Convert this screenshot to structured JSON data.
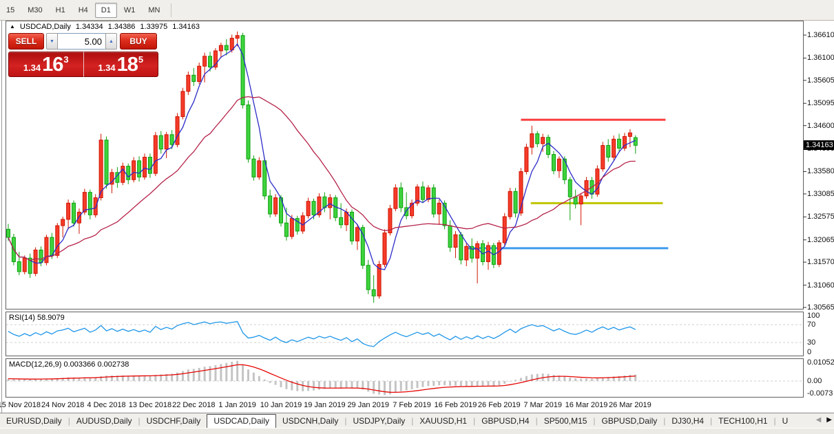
{
  "toolbar": {
    "timeframes": [
      {
        "label": "15",
        "active": false
      },
      {
        "label": "M30",
        "active": false
      },
      {
        "label": "H1",
        "active": false
      },
      {
        "label": "H4",
        "active": false
      },
      {
        "label": "D1",
        "active": true
      },
      {
        "label": "W1",
        "active": false
      },
      {
        "label": "MN",
        "active": false
      }
    ]
  },
  "chart": {
    "title": {
      "symbol": "USDCAD,Daily",
      "open": "1.34334",
      "high": "1.34386",
      "low": "1.33975",
      "close": "1.34163"
    },
    "trade_panel": {
      "sell_label": "SELL",
      "buy_label": "BUY",
      "volume": "5.00",
      "sell_price": {
        "prefix": "1.34",
        "big": "16",
        "sup": "3"
      },
      "buy_price": {
        "prefix": "1.34",
        "big": "18",
        "sup": "5"
      }
    },
    "price_axis": {
      "labels": [
        "1.36610",
        "1.36100",
        "1.35605",
        "1.35095",
        "1.34600",
        "1.34090",
        "1.33580",
        "1.33085",
        "1.32575",
        "1.32065",
        "1.31570",
        "1.31060",
        "1.30565"
      ],
      "current": "1.34163",
      "max": 1.3661,
      "min": 1.30565
    },
    "date_axis": [
      "15 Nov 2018",
      "24 Nov 2018",
      "4 Dec 2018",
      "13 Dec 2018",
      "22 Dec 2018",
      "1 Jan 2019",
      "10 Jan 2019",
      "19 Jan 2019",
      "29 Jan 2019",
      "7 Feb 2019",
      "16 Feb 2019",
      "26 Feb 2019",
      "7 Mar 2019",
      "16 Mar 2019",
      "26 Mar 2019"
    ]
  },
  "rsi": {
    "label": "RSI(14)",
    "value": "58.9079",
    "axis": [
      {
        "text": "100",
        "v": 100
      },
      {
        "text": "70",
        "v": 70
      },
      {
        "text": "30",
        "v": 30
      },
      {
        "text": "0",
        "v": 0
      }
    ],
    "levels": [
      70,
      30
    ],
    "color": "#1e96e8"
  },
  "macd": {
    "label": "MACD(12,26,9)",
    "main_value": "0.003366",
    "signal_value": "0.002738",
    "axis": [
      {
        "text": "0.010525",
        "v": 0.010525
      },
      {
        "text": "0.00",
        "v": 0
      },
      {
        "text": "-0.0073",
        "v": -0.0073
      }
    ],
    "hist_color": "#c4c4c4",
    "signal_color": "#e60400"
  },
  "tabs": {
    "items": [
      {
        "label": "EURUSD,Daily",
        "active": false
      },
      {
        "label": "AUDUSD,Daily",
        "active": false
      },
      {
        "label": "USDCHF,Daily",
        "active": false
      },
      {
        "label": "USDCAD,Daily",
        "active": true
      },
      {
        "label": "USDCNH,Daily",
        "active": false
      },
      {
        "label": "USDJPY,Daily",
        "active": false
      },
      {
        "label": "XAUUSD,H1",
        "active": false
      },
      {
        "label": "GBPUSD,H4",
        "active": false
      },
      {
        "label": "SP500,M15",
        "active": false
      },
      {
        "label": "GBPUSD,Daily",
        "active": false
      },
      {
        "label": "DJ30,H4",
        "active": false
      },
      {
        "label": "TECH100,H1",
        "active": false
      },
      {
        "label": "U",
        "active": false
      }
    ]
  },
  "chart_data": {
    "type": "candlestick",
    "symbol": "USDCAD",
    "timeframe": "Daily",
    "ylim": [
      1.30565,
      1.3661
    ],
    "colors": {
      "bull_fill": "#f53b2a",
      "bull_stroke": "#cf1500",
      "bear_fill": "#3ed33e",
      "bear_stroke": "#0da00d",
      "ma_fast": "#2b2bc8",
      "ma_slow": "#b5234a"
    },
    "ma_fast_period": 5,
    "ma_slow_period": 20,
    "candles": [
      [
        1.323,
        1.3242,
        1.3204,
        1.3212
      ],
      [
        1.3212,
        1.322,
        1.315,
        1.3158
      ],
      [
        1.3158,
        1.318,
        1.3128,
        1.3136
      ],
      [
        1.3136,
        1.3172,
        1.313,
        1.3166
      ],
      [
        1.3166,
        1.3176,
        1.3122,
        1.3132
      ],
      [
        1.3132,
        1.319,
        1.3126,
        1.3184
      ],
      [
        1.3184,
        1.3192,
        1.3148,
        1.3156
      ],
      [
        1.3156,
        1.3218,
        1.315,
        1.3212
      ],
      [
        1.3212,
        1.3222,
        1.3164,
        1.3172
      ],
      [
        1.3172,
        1.3244,
        1.3166,
        1.3238
      ],
      [
        1.3238,
        1.3258,
        1.3212,
        1.3252
      ],
      [
        1.3252,
        1.3296,
        1.323,
        1.3288
      ],
      [
        1.3288,
        1.3294,
        1.3236,
        1.3244
      ],
      [
        1.3244,
        1.3276,
        1.322,
        1.3268
      ],
      [
        1.3268,
        1.332,
        1.3262,
        1.3312
      ],
      [
        1.3312,
        1.3318,
        1.3252,
        1.3262
      ],
      [
        1.3262,
        1.3308,
        1.3256,
        1.33
      ],
      [
        1.33,
        1.3442,
        1.3294,
        1.3428
      ],
      [
        1.3428,
        1.3436,
        1.332,
        1.333
      ],
      [
        1.333,
        1.3364,
        1.331,
        1.3356
      ],
      [
        1.3356,
        1.3368,
        1.3322,
        1.3334
      ],
      [
        1.3334,
        1.3378,
        1.3328,
        1.337
      ],
      [
        1.337,
        1.3376,
        1.333,
        1.334
      ],
      [
        1.334,
        1.339,
        1.3334,
        1.3382
      ],
      [
        1.3382,
        1.3392,
        1.3336,
        1.3346
      ],
      [
        1.3346,
        1.3398,
        1.334,
        1.339
      ],
      [
        1.339,
        1.3398,
        1.3344,
        1.3354
      ],
      [
        1.3354,
        1.3446,
        1.3348,
        1.3438
      ],
      [
        1.3438,
        1.3448,
        1.3398,
        1.3408
      ],
      [
        1.3408,
        1.3446,
        1.3388,
        1.344
      ],
      [
        1.344,
        1.345,
        1.3408,
        1.3418
      ],
      [
        1.3418,
        1.3488,
        1.3412,
        1.348
      ],
      [
        1.348,
        1.3544,
        1.3474,
        1.3536
      ],
      [
        1.3536,
        1.358,
        1.3528,
        1.3572
      ],
      [
        1.3572,
        1.3588,
        1.3548,
        1.3558
      ],
      [
        1.3558,
        1.36,
        1.3552,
        1.3592
      ],
      [
        1.3592,
        1.3622,
        1.3556,
        1.3614
      ],
      [
        1.3614,
        1.3624,
        1.358,
        1.359
      ],
      [
        1.359,
        1.3632,
        1.3584,
        1.3626
      ],
      [
        1.3626,
        1.3644,
        1.361,
        1.3638
      ],
      [
        1.3638,
        1.3652,
        1.3616,
        1.3628
      ],
      [
        1.3628,
        1.3662,
        1.3622,
        1.3654
      ],
      [
        1.3654,
        1.3669,
        1.3636,
        1.366
      ],
      [
        1.366,
        1.3666,
        1.3498,
        1.3506
      ],
      [
        1.3506,
        1.3516,
        1.3378,
        1.3386
      ],
      [
        1.3386,
        1.3394,
        1.3338,
        1.3346
      ],
      [
        1.3346,
        1.339,
        1.334,
        1.3382
      ],
      [
        1.3382,
        1.3388,
        1.3296,
        1.3304
      ],
      [
        1.3304,
        1.3318,
        1.3256,
        1.3264
      ],
      [
        1.3264,
        1.3308,
        1.3258,
        1.33
      ],
      [
        1.33,
        1.3306,
        1.3236,
        1.3244
      ],
      [
        1.3244,
        1.3278,
        1.3205,
        1.3214
      ],
      [
        1.3214,
        1.3262,
        1.3208,
        1.3254
      ],
      [
        1.3254,
        1.326,
        1.3218,
        1.3226
      ],
      [
        1.3226,
        1.3268,
        1.322,
        1.326
      ],
      [
        1.326,
        1.33,
        1.3254,
        1.3292
      ],
      [
        1.3292,
        1.3298,
        1.3252,
        1.3262
      ],
      [
        1.3262,
        1.331,
        1.3256,
        1.3302
      ],
      [
        1.3302,
        1.3312,
        1.3268,
        1.3278
      ],
      [
        1.3278,
        1.3308,
        1.3252,
        1.33
      ],
      [
        1.33,
        1.3306,
        1.3248,
        1.3256
      ],
      [
        1.3256,
        1.3288,
        1.3232,
        1.324
      ],
      [
        1.324,
        1.3276,
        1.3226,
        1.3268
      ],
      [
        1.3268,
        1.3274,
        1.3196,
        1.3204
      ],
      [
        1.3204,
        1.3242,
        1.3184,
        1.3234
      ],
      [
        1.3234,
        1.324,
        1.3142,
        1.315
      ],
      [
        1.315,
        1.3162,
        1.3086,
        1.3096
      ],
      [
        1.3096,
        1.3128,
        1.3067,
        1.3082
      ],
      [
        1.3082,
        1.316,
        1.3076,
        1.3152
      ],
      [
        1.3152,
        1.323,
        1.3146,
        1.3222
      ],
      [
        1.3222,
        1.3284,
        1.3216,
        1.3276
      ],
      [
        1.3276,
        1.333,
        1.327,
        1.3322
      ],
      [
        1.3322,
        1.3334,
        1.3268,
        1.3278
      ],
      [
        1.3278,
        1.3312,
        1.3252,
        1.326
      ],
      [
        1.326,
        1.3296,
        1.3254,
        1.3288
      ],
      [
        1.3288,
        1.333,
        1.3282,
        1.3324
      ],
      [
        1.3324,
        1.3336,
        1.3288,
        1.3296
      ],
      [
        1.3296,
        1.3328,
        1.329,
        1.3322
      ],
      [
        1.3322,
        1.333,
        1.3256,
        1.3264
      ],
      [
        1.3264,
        1.3296,
        1.324,
        1.3288
      ],
      [
        1.3288,
        1.3294,
        1.323,
        1.3238
      ],
      [
        1.3238,
        1.325,
        1.318,
        1.319
      ],
      [
        1.319,
        1.3226,
        1.3166,
        1.3218
      ],
      [
        1.3218,
        1.3224,
        1.3152,
        1.3162
      ],
      [
        1.3162,
        1.32,
        1.3148,
        1.3192
      ],
      [
        1.3192,
        1.321,
        1.3156,
        1.3166
      ],
      [
        1.3166,
        1.3204,
        1.311,
        1.3198
      ],
      [
        1.3198,
        1.3206,
        1.315,
        1.3158
      ],
      [
        1.3158,
        1.3202,
        1.314,
        1.3194
      ],
      [
        1.3194,
        1.32,
        1.3144,
        1.3152
      ],
      [
        1.3152,
        1.3206,
        1.3146,
        1.32
      ],
      [
        1.32,
        1.3266,
        1.3194,
        1.3258
      ],
      [
        1.3258,
        1.3322,
        1.3252,
        1.3314
      ],
      [
        1.3314,
        1.3322,
        1.3256,
        1.3266
      ],
      [
        1.3266,
        1.3366,
        1.326,
        1.3358
      ],
      [
        1.3358,
        1.342,
        1.3352,
        1.3412
      ],
      [
        1.3412,
        1.346,
        1.3396,
        1.3442
      ],
      [
        1.3442,
        1.3448,
        1.3412,
        1.342
      ],
      [
        1.342,
        1.3442,
        1.3402,
        1.3434
      ],
      [
        1.3434,
        1.344,
        1.3388,
        1.3396
      ],
      [
        1.3396,
        1.3404,
        1.3352,
        1.336
      ],
      [
        1.336,
        1.3392,
        1.3344,
        1.3386
      ],
      [
        1.3386,
        1.3392,
        1.333,
        1.334
      ],
      [
        1.334,
        1.3346,
        1.325,
        1.3302
      ],
      [
        1.3302,
        1.3318,
        1.3276,
        1.3286
      ],
      [
        1.3286,
        1.331,
        1.3239,
        1.3304
      ],
      [
        1.3304,
        1.3346,
        1.3298,
        1.3338
      ],
      [
        1.3338,
        1.3346,
        1.3298,
        1.3308
      ],
      [
        1.3308,
        1.3372,
        1.3302,
        1.3364
      ],
      [
        1.3364,
        1.3424,
        1.3358,
        1.3416
      ],
      [
        1.3416,
        1.343,
        1.338,
        1.339
      ],
      [
        1.339,
        1.3438,
        1.3384,
        1.343
      ],
      [
        1.343,
        1.3442,
        1.34,
        1.341
      ],
      [
        1.341,
        1.3444,
        1.3404,
        1.3436
      ],
      [
        1.3436,
        1.3452,
        1.3412,
        1.3444
      ],
      [
        1.34334,
        1.34386,
        1.33975,
        1.34163
      ]
    ],
    "rsi_series": [
      55,
      48,
      44,
      50,
      45,
      52,
      47,
      54,
      49,
      56,
      58,
      62,
      54,
      58,
      62,
      53,
      58,
      68,
      56,
      61,
      55,
      60,
      55,
      59,
      54,
      58,
      53,
      66,
      59,
      64,
      60,
      68,
      72,
      75,
      70,
      73,
      76,
      72,
      75,
      76,
      73,
      75,
      77,
      52,
      40,
      42,
      46,
      40,
      35,
      42,
      34,
      30,
      36,
      32,
      37,
      42,
      38,
      44,
      40,
      44,
      39,
      35,
      41,
      32,
      38,
      28,
      23,
      21,
      32,
      40,
      47,
      53,
      47,
      43,
      48,
      53,
      48,
      52,
      44,
      49,
      42,
      36,
      44,
      37,
      43,
      38,
      45,
      39,
      44,
      39,
      45,
      53,
      60,
      52,
      61,
      66,
      70,
      66,
      68,
      62,
      56,
      61,
      55,
      50,
      48,
      52,
      58,
      53,
      60,
      65,
      59,
      64,
      58,
      62,
      65,
      58.9
    ],
    "macd_hist": [
      0.0012,
      0.001,
      0.0008,
      0.0009,
      0.0008,
      0.001,
      0.0011,
      0.0013,
      0.0012,
      0.0015,
      0.0017,
      0.0019,
      0.0018,
      0.0018,
      0.002,
      0.0019,
      0.002,
      0.0026,
      0.0028,
      0.0029,
      0.0028,
      0.0029,
      0.0028,
      0.0029,
      0.0028,
      0.0029,
      0.0028,
      0.0032,
      0.0034,
      0.0036,
      0.0038,
      0.0044,
      0.0052,
      0.006,
      0.0063,
      0.0068,
      0.0074,
      0.0077,
      0.0082,
      0.0088,
      0.0094,
      0.01,
      0.0105,
      0.0086,
      0.006,
      0.0044,
      0.0026,
      0.0008,
      -0.001,
      -0.002,
      -0.0032,
      -0.0042,
      -0.0048,
      -0.0052,
      -0.0053,
      -0.0051,
      -0.0049,
      -0.0045,
      -0.0041,
      -0.0038,
      -0.0036,
      -0.0036,
      -0.0035,
      -0.0037,
      -0.0038,
      -0.0044,
      -0.0055,
      -0.0066,
      -0.007,
      -0.0073,
      -0.0069,
      -0.006,
      -0.0053,
      -0.0049,
      -0.0043,
      -0.0036,
      -0.0031,
      -0.0026,
      -0.0025,
      -0.0022,
      -0.0022,
      -0.0025,
      -0.0024,
      -0.0026,
      -0.0026,
      -0.0026,
      -0.0025,
      -0.0025,
      -0.0024,
      -0.0025,
      -0.0023,
      -0.0014,
      -0.0002,
      0.0006,
      0.0016,
      0.0026,
      0.0034,
      0.0037,
      0.0039,
      0.0037,
      0.0032,
      0.0029,
      0.0024,
      0.0018,
      0.0014,
      0.0012,
      0.0013,
      0.0012,
      0.0014,
      0.0019,
      0.0021,
      0.0024,
      0.0026,
      0.0029,
      0.0032,
      0.0034
    ],
    "hlines": [
      {
        "name": "resistance-line",
        "color": "#fa3c3c",
        "price": 1.3473,
        "from_bar": 94,
        "to_bar": 120.5,
        "width": 3
      },
      {
        "name": "mid-support-line",
        "color": "#bfc400",
        "price": 1.3288,
        "from_bar": 95.8,
        "to_bar": 120,
        "width": 3
      },
      {
        "name": "low-support-line",
        "color": "#3d9bee",
        "price": 1.3188,
        "from_bar": 84.3,
        "to_bar": 121,
        "width": 3
      }
    ]
  }
}
